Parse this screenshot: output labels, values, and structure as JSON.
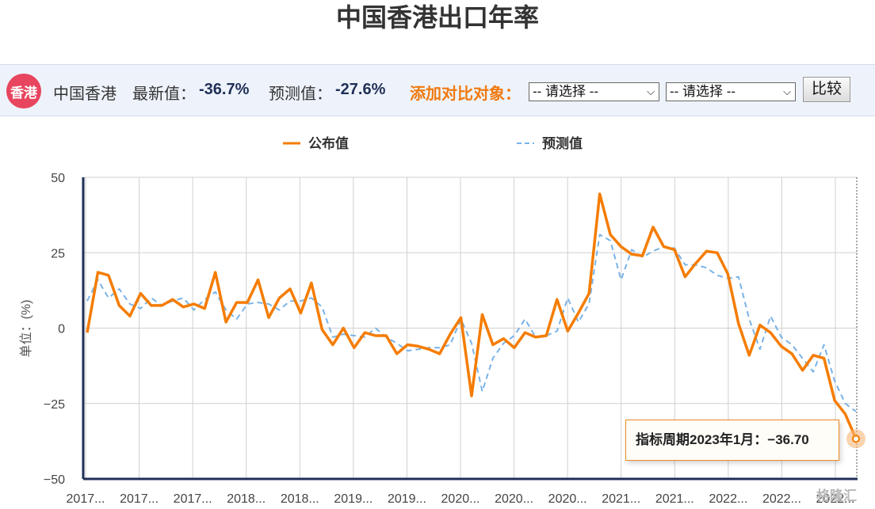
{
  "page_title": "中国香港出口年率",
  "info_bar": {
    "badge": "香港",
    "region": "中国香港",
    "latest_label": "最新值：",
    "latest_value": "-36.7%",
    "forecast_label": "预测值：",
    "forecast_value": "-27.6%",
    "compare_label": "添加对比对象：",
    "select1": "-- 请选择 --",
    "select2": "-- 请选择 --",
    "compare_button": "比较"
  },
  "tooltip": "指标周期2023年1月：−36.70",
  "watermark": "格隆汇",
  "colors": {
    "published": "#f57c00",
    "forecast": "#7ab3e8",
    "axis": "#1f2f57",
    "grid": "#d0d0d0"
  },
  "chart_data": {
    "type": "line",
    "ylabel": "单位：(%)",
    "ylim": [
      -50,
      50
    ],
    "yticks": [
      "50",
      "25",
      "0",
      "−25",
      "−50"
    ],
    "yticks_values": [
      50,
      25,
      0,
      -25,
      -50
    ],
    "xtick_labels": [
      "2017...",
      "2017...",
      "2017...",
      "2018...",
      "2018...",
      "2019...",
      "2019...",
      "2020...",
      "2020...",
      "2020...",
      "2021...",
      "2021...",
      "2022...",
      "2022...",
      "2022..."
    ],
    "x_start": "2016-12",
    "x_end": "2023-01",
    "legend": [
      "公布值",
      "预测值"
    ],
    "legend_position": "top-center",
    "grid": true,
    "series": [
      {
        "name": "公布值",
        "style": "solid",
        "values": [
          -1.5,
          18.5,
          17.5,
          7.5,
          4,
          11.5,
          7.5,
          7.5,
          9.5,
          7,
          8,
          6.5,
          18.5,
          2,
          8.5,
          8.5,
          16,
          3.5,
          10,
          13,
          5,
          15,
          -0.5,
          -5.5,
          0,
          -6.5,
          -1.5,
          -2.5,
          -2.5,
          -8.5,
          -5.5,
          -6,
          -7,
          -8.5,
          -2,
          3.5,
          -22.5,
          4.5,
          -5.5,
          -3.5,
          -6.5,
          -1.5,
          -3,
          -2.5,
          9.5,
          -1,
          5,
          11.5,
          44.5,
          31,
          27,
          24.5,
          24,
          33.5,
          27,
          26,
          17,
          21.5,
          25.5,
          25,
          18,
          1.5,
          -9,
          1,
          -1.5,
          -6,
          -8.5,
          -14,
          -9,
          -10,
          -24,
          -28.5,
          -36.7
        ]
      },
      {
        "name": "预测值",
        "style": "dashed",
        "values": [
          9,
          16,
          10,
          13,
          8,
          6.5,
          10,
          7.5,
          9,
          10,
          6,
          9.5,
          12,
          6,
          3,
          8,
          8.5,
          8,
          6,
          9,
          9,
          10,
          7,
          -3,
          -2,
          -2.5,
          -3,
          0,
          -3,
          -5,
          -7.5,
          -7,
          -6.5,
          -6.5,
          -5.5,
          3,
          -5,
          -21,
          -10,
          -5,
          -2.5,
          3,
          -3,
          -2.5,
          -1,
          10,
          2,
          8,
          31,
          29,
          16,
          26,
          23.5,
          25.5,
          27,
          26.5,
          21,
          21,
          20,
          17.5,
          16.5,
          17,
          3,
          -7,
          4,
          -3,
          -5.5,
          -10,
          -14.5,
          -5.5,
          -17.5,
          -25,
          -27.6
        ]
      }
    ]
  }
}
